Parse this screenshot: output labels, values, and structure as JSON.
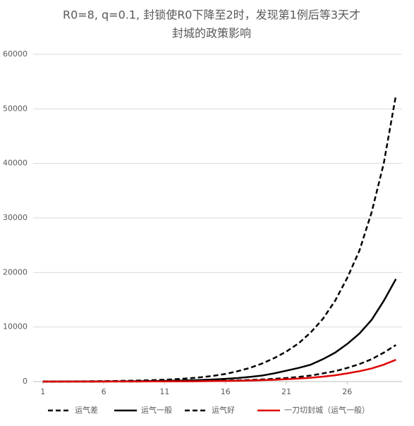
{
  "chart_data": {
    "type": "line",
    "title": [
      "R0=8, q=0.1, 封锁使R0下降至2时，发现第1例后等3天才",
      "封城的政策影响"
    ],
    "x": [
      1,
      2,
      3,
      4,
      5,
      6,
      7,
      8,
      9,
      10,
      11,
      12,
      13,
      14,
      15,
      16,
      17,
      18,
      19,
      20,
      21,
      22,
      23,
      24,
      25,
      26,
      27,
      28,
      29,
      30
    ],
    "xlim": [
      0.2,
      30.5
    ],
    "xticks": [
      1,
      6,
      11,
      16,
      21,
      26
    ],
    "ylim": [
      0,
      60000
    ],
    "yticks": [
      0,
      10000,
      20000,
      30000,
      40000,
      50000,
      60000
    ],
    "grid": true,
    "series": [
      {
        "name": "运气差",
        "color": "#000000",
        "dash": "dashed",
        "values": [
          10,
          20,
          30,
          45,
          60,
          80,
          110,
          150,
          200,
          260,
          340,
          450,
          600,
          800,
          1050,
          1400,
          1900,
          2500,
          3300,
          4300,
          5500,
          7000,
          9000,
          11500,
          14800,
          19000,
          24000,
          31000,
          40000,
          52500
        ]
      },
      {
        "name": "运气一般",
        "color": "#000000",
        "dash": "solid",
        "values": [
          3,
          6,
          10,
          15,
          22,
          30,
          40,
          55,
          75,
          100,
          130,
          170,
          220,
          290,
          380,
          500,
          650,
          850,
          1100,
          1500,
          2000,
          2500,
          3100,
          4100,
          5300,
          6900,
          8800,
          11300,
          14800,
          18800
        ]
      },
      {
        "name": "运气好",
        "color": "#000000",
        "dash": "dashed",
        "values": [
          1,
          2,
          3,
          4,
          6,
          9,
          12,
          16,
          22,
          30,
          40,
          55,
          75,
          100,
          130,
          170,
          220,
          290,
          380,
          500,
          650,
          850,
          1100,
          1500,
          1900,
          2500,
          3200,
          4100,
          5300,
          6700
        ]
      },
      {
        "name": "一刀切封城（运气一般）",
        "color": "#e00000",
        "dash": "solid",
        "values": [
          1,
          2,
          3,
          4,
          6,
          8,
          11,
          14,
          19,
          25,
          32,
          42,
          55,
          70,
          90,
          115,
          150,
          200,
          260,
          330,
          430,
          550,
          700,
          900,
          1150,
          1500,
          1900,
          2400,
          3100,
          4000
        ]
      }
    ]
  }
}
